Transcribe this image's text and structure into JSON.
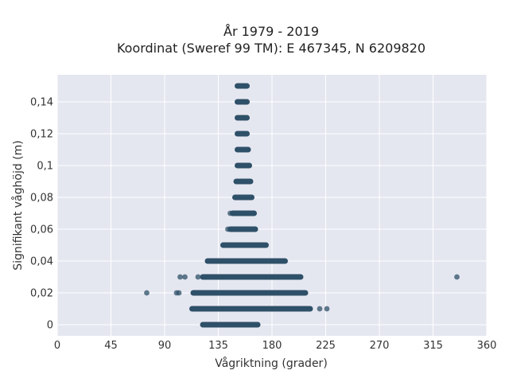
{
  "chart_data": {
    "type": "scatter",
    "title_line1": "År 1979 - 2019",
    "title_line2": "Koordinat (Sweref 99 TM): E 467345, N 6209820",
    "xlabel": "Vågriktning (grader)",
    "ylabel": "Signifikant våghöjd (m)",
    "xlim": [
      0,
      360
    ],
    "ylim": [
      -0.007,
      0.157
    ],
    "xticks": [
      0,
      45,
      90,
      135,
      180,
      225,
      270,
      315,
      360
    ],
    "yticks": [
      0,
      0.02,
      0.04,
      0.06,
      0.08,
      0.1,
      0.12,
      0.14
    ],
    "ytick_labels": [
      "0",
      "0,02",
      "0,04",
      "0,06",
      "0,08",
      "0,1",
      "0,12",
      "0,14"
    ],
    "grid": true,
    "colors": {
      "background": "#e5e7f0",
      "grid": "#ffffff",
      "marker": "#2e5068"
    },
    "bands": [
      {
        "y": 0.0,
        "x_min": 122,
        "x_max": 168
      },
      {
        "y": 0.01,
        "x_min": 113,
        "x_max": 212
      },
      {
        "y": 0.02,
        "x_min": 114,
        "x_max": 208
      },
      {
        "y": 0.03,
        "x_min": 122,
        "x_max": 204
      },
      {
        "y": 0.04,
        "x_min": 126,
        "x_max": 191
      },
      {
        "y": 0.05,
        "x_min": 139,
        "x_max": 175
      },
      {
        "y": 0.06,
        "x_min": 145,
        "x_max": 166
      },
      {
        "y": 0.07,
        "x_min": 147,
        "x_max": 165
      },
      {
        "y": 0.08,
        "x_min": 149,
        "x_max": 163
      },
      {
        "y": 0.09,
        "x_min": 150,
        "x_max": 162
      },
      {
        "y": 0.1,
        "x_min": 151,
        "x_max": 161
      },
      {
        "y": 0.11,
        "x_min": 151,
        "x_max": 160
      },
      {
        "y": 0.12,
        "x_min": 151,
        "x_max": 159
      },
      {
        "y": 0.13,
        "x_min": 151,
        "x_max": 159
      },
      {
        "y": 0.14,
        "x_min": 151,
        "x_max": 159
      },
      {
        "y": 0.15,
        "x_min": 151,
        "x_max": 159
      }
    ],
    "points": [
      {
        "x": 75,
        "y": 0.02
      },
      {
        "x": 100,
        "y": 0.02
      },
      {
        "x": 102,
        "y": 0.02
      },
      {
        "x": 103,
        "y": 0.03
      },
      {
        "x": 107,
        "y": 0.03
      },
      {
        "x": 118,
        "y": 0.03
      },
      {
        "x": 143,
        "y": 0.06
      },
      {
        "x": 145,
        "y": 0.07
      },
      {
        "x": 220,
        "y": 0.01
      },
      {
        "x": 226,
        "y": 0.01
      },
      {
        "x": 162,
        "y": 0.0
      },
      {
        "x": 168,
        "y": 0.0
      },
      {
        "x": 335,
        "y": 0.03
      }
    ]
  }
}
